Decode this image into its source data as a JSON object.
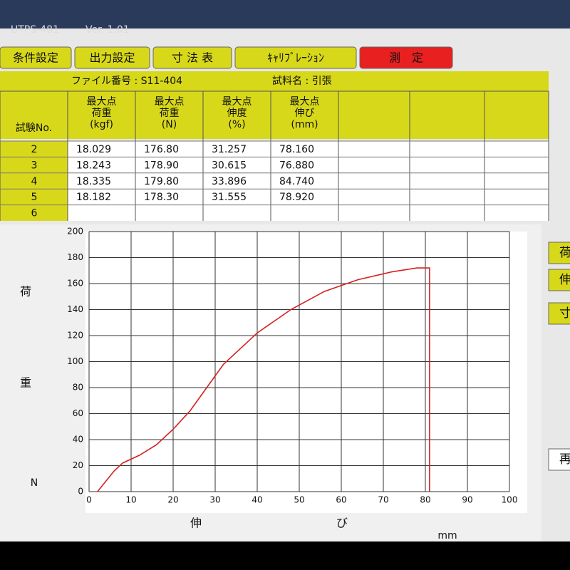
{
  "window": {
    "title": "UTPS-481",
    "version": "Ver. 1.01"
  },
  "tabs": [
    "条件設定",
    "出力設定",
    "寸 法 表",
    "ｷｬﾘﾌﾞﾚｰｼｮﾝ",
    "測　定"
  ],
  "file": "ファイル番号 : S11-404",
  "sample": "試料名 : 引張",
  "table": {
    "header": [
      [
        "試験No."
      ],
      [
        "最大点",
        "荷重",
        "(kgf)"
      ],
      [
        "最大点",
        "荷重",
        "(N)"
      ],
      [
        "最大点",
        "伸度",
        "(%)"
      ],
      [
        "最大点",
        "伸び",
        "(mm)"
      ]
    ],
    "rows": [
      [
        "2",
        "18.029",
        "176.80",
        "31.257",
        "78.160"
      ],
      [
        "3",
        "18.243",
        "178.90",
        "30.615",
        "76.880"
      ],
      [
        "4",
        "18.335",
        "179.80",
        "33.896",
        "84.740"
      ],
      [
        "5",
        "18.182",
        "178.30",
        "31.555",
        "78.920"
      ],
      [
        "6"
      ]
    ]
  },
  "side_buttons": [
    "荷",
    "伸",
    "寸",
    "再"
  ],
  "chart_data": {
    "type": "line",
    "x": [
      2,
      4,
      6,
      8,
      12,
      16,
      20,
      24,
      28,
      32,
      40,
      48,
      56,
      64,
      72,
      78,
      81,
      81
    ],
    "series": [
      {
        "color": "#d42020",
        "values": [
          0,
          8,
          16,
          22,
          28,
          36,
          48,
          62,
          80,
          98,
          122,
          140,
          154,
          163,
          169,
          172,
          172,
          0
        ]
      }
    ],
    "xlim": [
      0,
      100
    ],
    "xticks": [
      0,
      10,
      20,
      30,
      40,
      50,
      60,
      70,
      80,
      90,
      100
    ],
    "ylim": [
      0,
      200
    ],
    "yticks": [
      0,
      20,
      40,
      60,
      80,
      100,
      120,
      140,
      160,
      180,
      200
    ],
    "y_label": [
      "荷",
      "重"
    ],
    "y_unit": "N",
    "x_label": [
      "伸",
      "び"
    ],
    "x_unit": "mm",
    "grid": true
  }
}
